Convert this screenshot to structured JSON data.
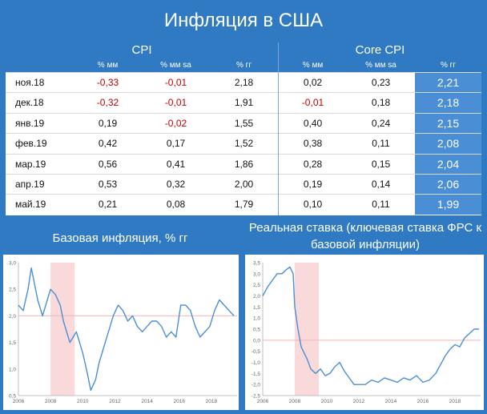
{
  "title": "Инфляция в США",
  "table": {
    "groups": [
      "CPI",
      "Core CPI"
    ],
    "subheaders": [
      "% мм",
      "% мм sa",
      "% гг",
      "% мм",
      "% мм sa",
      "% гг"
    ],
    "rows": [
      {
        "date": "ноя.18",
        "values": [
          "-0,33",
          "-0,01",
          "2,18",
          "0,02",
          "0,23",
          "2,21"
        ]
      },
      {
        "date": "дек.18",
        "values": [
          "-0,32",
          "-0,01",
          "1,91",
          "-0,01",
          "0,18",
          "2,18"
        ]
      },
      {
        "date": "янв.19",
        "values": [
          "0,19",
          "-0,02",
          "1,55",
          "0,40",
          "0,24",
          "2,15"
        ]
      },
      {
        "date": "фев.19",
        "values": [
          "0,42",
          "0,17",
          "1,52",
          "0,38",
          "0,11",
          "2,08"
        ]
      },
      {
        "date": "мар.19",
        "values": [
          "0,56",
          "0,41",
          "1,86",
          "0,28",
          "0,15",
          "2,04"
        ]
      },
      {
        "date": "апр.19",
        "values": [
          "0,53",
          "0,32",
          "2,00",
          "0,19",
          "0,14",
          "2,06"
        ]
      },
      {
        "date": "май.19",
        "values": [
          "0,21",
          "0,08",
          "1,79",
          "0,10",
          "0,11",
          "1,99"
        ]
      }
    ]
  },
  "colors": {
    "header": "#2f7ac2",
    "highlight": "#4a8fd6",
    "negative": "#c00000",
    "line": "#4a8fd6",
    "refline": "#f4b5b5",
    "recession": "#f9d9d9"
  },
  "chart_data": [
    {
      "type": "line",
      "title": "Базовая инфляция, % гг",
      "ylim": [
        0.5,
        3.0
      ],
      "yticks": [
        "3,0",
        "2,5",
        "2,0",
        "1,5",
        "1,0",
        "0,5"
      ],
      "yticks_values": [
        3.0,
        2.5,
        2.0,
        1.5,
        1.0,
        0.5
      ],
      "xticks": [
        "2006",
        "2008",
        "2010",
        "2012",
        "2014",
        "2016",
        "2018"
      ],
      "xticks_values": [
        2006,
        2008,
        2010,
        2012,
        2014,
        2016,
        2018
      ],
      "xlim": [
        2006,
        2019.6
      ],
      "refline": 2.0,
      "recession": [
        2008.0,
        2009.5
      ],
      "x": [
        2006.0,
        2006.3,
        2006.6,
        2006.8,
        2007.0,
        2007.2,
        2007.5,
        2007.7,
        2008.0,
        2008.3,
        2008.6,
        2008.8,
        2009.0,
        2009.2,
        2009.4,
        2009.6,
        2009.8,
        2010.0,
        2010.3,
        2010.5,
        2010.8,
        2011.0,
        2011.3,
        2011.6,
        2011.9,
        2012.2,
        2012.5,
        2012.8,
        2013.1,
        2013.4,
        2013.7,
        2014.0,
        2014.3,
        2014.6,
        2014.9,
        2015.2,
        2015.5,
        2015.8,
        2016.1,
        2016.4,
        2016.7,
        2017.0,
        2017.3,
        2017.6,
        2017.9,
        2018.2,
        2018.5,
        2018.8,
        2019.1,
        2019.4
      ],
      "y": [
        2.2,
        2.1,
        2.5,
        2.9,
        2.6,
        2.3,
        2.0,
        2.2,
        2.5,
        2.4,
        2.2,
        1.9,
        1.7,
        1.5,
        1.6,
        1.7,
        1.5,
        1.3,
        0.9,
        0.6,
        0.8,
        1.1,
        1.4,
        1.7,
        2.0,
        2.2,
        2.1,
        1.9,
        2.0,
        1.8,
        1.7,
        1.8,
        1.9,
        1.9,
        1.8,
        1.6,
        1.7,
        1.6,
        2.2,
        2.2,
        2.1,
        1.8,
        1.6,
        1.7,
        1.8,
        2.1,
        2.3,
        2.2,
        2.1,
        2.0
      ]
    },
    {
      "type": "line",
      "title": "Реальная ставка (ключевая ставка ФРС к базовой инфляции)",
      "ylim": [
        -2.5,
        3.5
      ],
      "yticks": [
        "3,5",
        "3,0",
        "2,5",
        "2,0",
        "1,5",
        "1,0",
        "0,5",
        "0,0",
        "-0,5",
        "-1,0",
        "-1,5",
        "-2,0",
        "-2,5"
      ],
      "yticks_values": [
        3.5,
        3.0,
        2.5,
        2.0,
        1.5,
        1.0,
        0.5,
        0.0,
        -0.5,
        -1.0,
        -1.5,
        -2.0,
        -2.5
      ],
      "xticks": [
        "2006",
        "2008",
        "2010",
        "2012",
        "2014",
        "2016",
        "2018"
      ],
      "xticks_values": [
        2006,
        2008,
        2010,
        2012,
        2014,
        2016,
        2018
      ],
      "xlim": [
        2006,
        2019.6
      ],
      "refline": 0.0,
      "recession": [
        2008.0,
        2009.5
      ],
      "x": [
        2006.0,
        2006.3,
        2006.6,
        2006.9,
        2007.2,
        2007.5,
        2007.7,
        2007.9,
        2008.0,
        2008.2,
        2008.4,
        2008.6,
        2008.8,
        2009.0,
        2009.3,
        2009.6,
        2009.9,
        2010.2,
        2010.5,
        2010.8,
        2011.1,
        2011.4,
        2011.7,
        2012.0,
        2012.4,
        2012.8,
        2013.2,
        2013.6,
        2014.0,
        2014.4,
        2014.8,
        2015.2,
        2015.6,
        2016.0,
        2016.4,
        2016.8,
        2017.1,
        2017.4,
        2017.7,
        2018.0,
        2018.3,
        2018.6,
        2018.9,
        2019.2,
        2019.5
      ],
      "y": [
        2.0,
        2.4,
        2.7,
        3.0,
        3.0,
        3.2,
        3.3,
        3.0,
        1.5,
        0.5,
        -0.3,
        -0.6,
        -0.9,
        -1.3,
        -1.5,
        -1.3,
        -1.6,
        -1.5,
        -1.2,
        -1.0,
        -1.4,
        -1.7,
        -2.0,
        -2.0,
        -2.0,
        -1.8,
        -1.9,
        -1.7,
        -1.8,
        -1.9,
        -1.7,
        -1.8,
        -1.6,
        -1.9,
        -1.8,
        -1.5,
        -1.1,
        -0.7,
        -0.4,
        -0.2,
        -0.3,
        0.1,
        0.3,
        0.5,
        0.5
      ]
    }
  ]
}
